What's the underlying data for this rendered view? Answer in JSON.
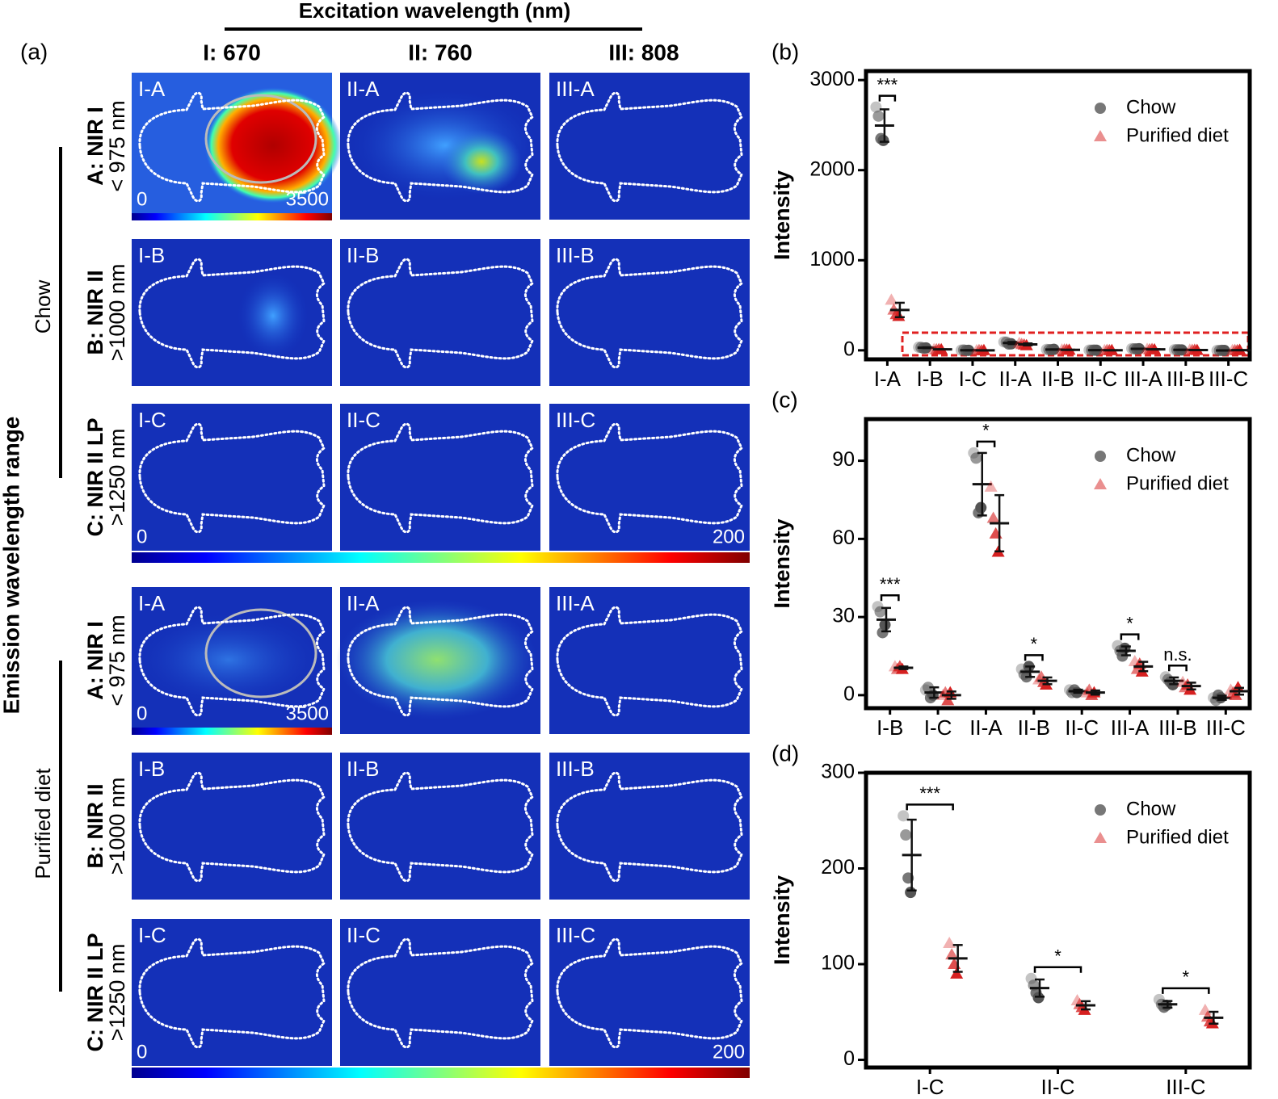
{
  "panel_a": {
    "label": "(a)",
    "header": "Excitation wavelength (nm)",
    "columns": [
      "I: 670",
      "II: 760",
      "III: 808"
    ],
    "side_label": "Emission wavelength range",
    "groups": [
      "Chow",
      "Purified diet"
    ],
    "rows": [
      {
        "name": "A: NIR I",
        "range": "< 975 nm"
      },
      {
        "name": "B: NIR II",
        "range": ">1000 nm"
      },
      {
        "name": "C: NIR II LP",
        "range": ">1250 nm"
      }
    ],
    "tiles": [
      [
        "I-A",
        "II-A",
        "III-A"
      ],
      [
        "I-B",
        "II-B",
        "III-B"
      ],
      [
        "I-C",
        "II-C",
        "III-C"
      ]
    ],
    "scales": [
      {
        "min": 0,
        "max": 3500
      },
      {
        "min": 0,
        "max": 200
      }
    ]
  },
  "chart_data": [
    {
      "type": "dot",
      "label": "(b)",
      "ylabel": "Intensity",
      "categories": [
        "I-A",
        "I-B",
        "I-C",
        "II-A",
        "II-B",
        "II-C",
        "III-A",
        "III-B",
        "III-C"
      ],
      "ylim": [
        -100,
        3100
      ],
      "yticks": [
        0,
        1000,
        2000,
        3000
      ],
      "annotations": [
        "***",
        null,
        null,
        null,
        null,
        null,
        null,
        null,
        null
      ],
      "series": [
        {
          "name": "Chow",
          "color": "#555555",
          "points": [
            [
              2700,
              2600,
              2350,
              2330
            ],
            [
              34,
              32,
              24,
              27
            ],
            [
              2,
              3,
              -1,
              0
            ],
            [
              93,
              91,
              70,
              72
            ],
            [
              10,
              8,
              7,
              11
            ],
            [
              2,
              1,
              2,
              1
            ],
            [
              19,
              17,
              15,
              18
            ],
            [
              7,
              6,
              5,
              4
            ],
            [
              -1,
              -2,
              0,
              -1
            ]
          ],
          "mean": [
            2495,
            29,
            1,
            81,
            9,
            1.5,
            17,
            5.5,
            -1
          ],
          "sd": [
            180,
            4.5,
            2,
            12,
            2,
            0.6,
            1.7,
            1.3,
            0.8
          ]
        },
        {
          "name": "Purified diet",
          "color": "#d62020",
          "points": [
            [
              560,
              450,
              400,
              380
            ],
            [
              11,
              10,
              11,
              10
            ],
            [
              0,
              1,
              -2,
              1
            ],
            [
              80,
              68,
              62,
              55
            ],
            [
              6,
              7,
              5,
              4
            ],
            [
              1,
              2,
              0,
              1
            ],
            [
              13,
              10,
              12,
              9
            ],
            [
              5,
              3,
              4,
              2
            ],
            [
              2,
              1,
              0,
              3
            ]
          ],
          "mean": [
            448,
            10.5,
            0,
            66,
            5.5,
            1,
            11,
            3.5,
            1.5
          ],
          "sd": [
            80,
            0.5,
            1.4,
            10.8,
            1.3,
            0.8,
            1.8,
            1.3,
            1.3
          ]
        }
      ]
    },
    {
      "type": "dot",
      "label": "(c)",
      "ylabel": "Intensity",
      "categories": [
        "I-B",
        "I-C",
        "II-A",
        "II-B",
        "II-C",
        "III-A",
        "III-B",
        "III-C"
      ],
      "ylim": [
        -5,
        106
      ],
      "yticks": [
        0,
        30,
        60,
        90
      ],
      "annotations": [
        "***",
        null,
        "*",
        "*",
        null,
        "*",
        "n.s.",
        null
      ],
      "series": [
        {
          "name": "Chow",
          "color": "#555555",
          "points": [
            [
              34,
              32,
              24,
              27
            ],
            [
              2,
              3,
              -1,
              0
            ],
            [
              93,
              91,
              70,
              72
            ],
            [
              10,
              8,
              7,
              11
            ],
            [
              2,
              1,
              2,
              1
            ],
            [
              19,
              17,
              15,
              18
            ],
            [
              7,
              6,
              5,
              4
            ],
            [
              -1,
              -2,
              0,
              -1
            ]
          ],
          "mean": [
            29,
            1,
            81,
            9,
            1.5,
            17,
            5.5,
            -1
          ],
          "sd": [
            4.5,
            2,
            12,
            2,
            0.6,
            1.7,
            1.3,
            0.8
          ]
        },
        {
          "name": "Purified diet",
          "color": "#d62020",
          "points": [
            [
              11,
              10,
              11,
              10
            ],
            [
              0,
              1,
              -2,
              1
            ],
            [
              80,
              68,
              62,
              55
            ],
            [
              6,
              7,
              5,
              4
            ],
            [
              1,
              2,
              0,
              1
            ],
            [
              13,
              10,
              12,
              9
            ],
            [
              5,
              3,
              4,
              2
            ],
            [
              2,
              1,
              0,
              3
            ]
          ],
          "mean": [
            10.5,
            0,
            66,
            5.5,
            1,
            11,
            3.5,
            1.5
          ],
          "sd": [
            0.5,
            1.4,
            10.8,
            1.3,
            0.8,
            1.8,
            1.3,
            1.3
          ]
        }
      ]
    },
    {
      "type": "dot",
      "label": "(d)",
      "ylabel": "Intensity",
      "categories": [
        "I-C",
        "II-C",
        "III-C"
      ],
      "ylim": [
        -8,
        300
      ],
      "yticks": [
        0,
        100,
        200,
        300
      ],
      "annotations": [
        "***",
        "*",
        "*"
      ],
      "series": [
        {
          "name": "Chow",
          "color": "#555555",
          "points": [
            [
              255,
              235,
              190,
              175
            ],
            [
              85,
              78,
              70,
              65
            ],
            [
              63,
              58,
              55,
              57
            ]
          ],
          "mean": [
            214,
            75,
            58
          ],
          "sd": [
            37,
            9,
            3.5
          ]
        },
        {
          "name": "Purified diet",
          "color": "#d62020",
          "points": [
            [
              122,
              110,
              100,
              90
            ],
            [
              62,
              58,
              55,
              52
            ],
            [
              52,
              45,
              40,
              38
            ]
          ],
          "mean": [
            106,
            57,
            44
          ],
          "sd": [
            14,
            4.3,
            6.2
          ]
        }
      ]
    }
  ]
}
